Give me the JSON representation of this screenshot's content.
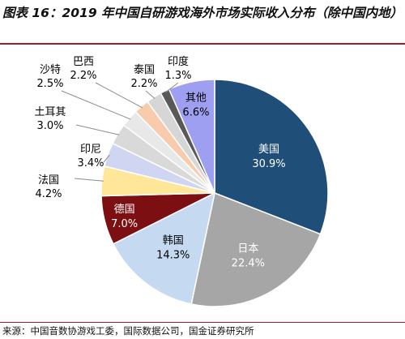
{
  "header": {
    "title": "图表 16：2019 年中国自研游戏海外市场实际收入分布（除中国内地）"
  },
  "footer": {
    "source": "来源：中国音数协游戏工委，国际数据公司，国金证券研究所"
  },
  "chart_data": {
    "type": "pie",
    "title": "图表 16：2019 年中国自研游戏海外市场实际收入分布（除中国内地）",
    "legend": "none",
    "slices": [
      {
        "label": "美国",
        "value": 30.9,
        "value_label": "30.9%",
        "color": "#1f4e79",
        "text_color": "#ffffff",
        "label_inside": true
      },
      {
        "label": "日本",
        "value": 22.4,
        "value_label": "22.4%",
        "color": "#a6a6a6",
        "text_color": "#ffffff",
        "label_inside": true
      },
      {
        "label": "韩国",
        "value": 14.3,
        "value_label": "14.3%",
        "color": "#c5d9f1",
        "text_color": "#000000",
        "label_inside": true
      },
      {
        "label": "德国",
        "value": 7.0,
        "value_label": "7.0%",
        "color": "#7b0f12",
        "text_color": "#ffffff",
        "label_inside": true
      },
      {
        "label": "法国",
        "value": 4.2,
        "value_label": "4.2%",
        "color": "#ffe699",
        "text_color": "#000000",
        "label_inside": false
      },
      {
        "label": "印尼",
        "value": 3.4,
        "value_label": "3.4%",
        "color": "#d0d6f2",
        "text_color": "#000000",
        "label_inside": false
      },
      {
        "label": "土耳其",
        "value": 3.0,
        "value_label": "3.0%",
        "color": "#d9d9d9",
        "text_color": "#000000",
        "label_inside": false
      },
      {
        "label": "沙特",
        "value": 2.5,
        "value_label": "2.5%",
        "color": "#e8e8e8",
        "text_color": "#000000",
        "label_inside": false
      },
      {
        "label": "巴西",
        "value": 2.2,
        "value_label": "2.2%",
        "color": "#f8cbad",
        "text_color": "#000000",
        "label_inside": false
      },
      {
        "label": "泰国",
        "value": 2.2,
        "value_label": "2.2%",
        "color": "#d6d6d6",
        "text_color": "#000000",
        "label_inside": false
      },
      {
        "label": "印度",
        "value": 1.3,
        "value_label": "1.3%",
        "color": "#595959",
        "text_color": "#000000",
        "label_inside": false
      },
      {
        "label": "其他",
        "value": 6.6,
        "value_label": "6.6%",
        "color": "#9f9ff2",
        "text_color": "#000000",
        "label_inside": true
      }
    ]
  }
}
